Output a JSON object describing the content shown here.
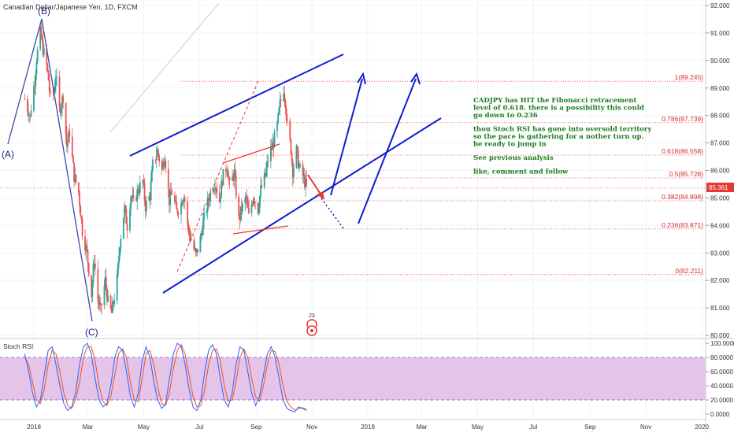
{
  "header": {
    "title": "Canadian Dollar/Japanese Yen, 1D, FXCM"
  },
  "chart_data": {
    "type": "candlestick",
    "symbol": "CADJPY",
    "timeframe": "1D",
    "price_axis": {
      "min": 80.0,
      "max": 92.0,
      "ticks": [
        "92.000",
        "91.000",
        "90.000",
        "89.000",
        "88.000",
        "87.000",
        "86.000",
        "85.000",
        "84.000",
        "83.000",
        "82.000",
        "81.000",
        "80.000"
      ]
    },
    "last_price": "85.361",
    "time_axis": [
      "2018",
      "Mar",
      "May",
      "Jul",
      "Sep",
      "Nov",
      "2019",
      "Mar",
      "May",
      "Jul",
      "Sep",
      "Nov",
      "2020"
    ],
    "close_path": [
      [
        "2017-12-22",
        88.6
      ],
      [
        "2017-12-26",
        88.2
      ],
      [
        "2017-12-28",
        87.9
      ],
      [
        "2017-12-29",
        88.3
      ],
      [
        "2018-01-02",
        89.3
      ],
      [
        "2018-01-04",
        90.1
      ],
      [
        "2018-01-08",
        91.0
      ],
      [
        "2018-01-10",
        90.6
      ],
      [
        "2018-01-11",
        90.4
      ],
      [
        "2018-01-15",
        89.8
      ],
      [
        "2018-01-17",
        89.3
      ],
      [
        "2018-01-19",
        88.6
      ],
      [
        "2018-01-23",
        88.9
      ],
      [
        "2018-01-25",
        89.5
      ],
      [
        "2018-01-29",
        88.2
      ],
      [
        "2018-02-02",
        88.7
      ],
      [
        "2018-02-06",
        86.9
      ],
      [
        "2018-02-09",
        87.4
      ],
      [
        "2018-02-14",
        85.8
      ],
      [
        "2018-02-19",
        85.2
      ],
      [
        "2018-02-23",
        83.8
      ],
      [
        "2018-02-28",
        83.0
      ],
      [
        "2018-03-05",
        81.5
      ],
      [
        "2018-03-08",
        82.8
      ],
      [
        "2018-03-12",
        81.3
      ],
      [
        "2018-03-15",
        80.9
      ],
      [
        "2018-03-20",
        82.0
      ],
      [
        "2018-03-23",
        81.2
      ],
      [
        "2018-03-27",
        80.8
      ],
      [
        "2018-04-02",
        82.0
      ],
      [
        "2018-04-05",
        83.4
      ],
      [
        "2018-04-10",
        84.6
      ],
      [
        "2018-04-13",
        84.0
      ],
      [
        "2018-04-17",
        85.1
      ],
      [
        "2018-04-20",
        84.8
      ],
      [
        "2018-04-25",
        85.3
      ],
      [
        "2018-04-30",
        85.6
      ],
      [
        "2018-05-03",
        84.7
      ],
      [
        "2018-05-08",
        85.1
      ],
      [
        "2018-05-11",
        86.2
      ],
      [
        "2018-05-16",
        86.7
      ],
      [
        "2018-05-21",
        86.0
      ],
      [
        "2018-05-24",
        86.6
      ],
      [
        "2018-05-29",
        84.9
      ],
      [
        "2018-06-01",
        85.2
      ],
      [
        "2018-06-06",
        84.5
      ],
      [
        "2018-06-11",
        84.8
      ],
      [
        "2018-06-14",
        85.2
      ],
      [
        "2018-06-19",
        83.8
      ],
      [
        "2018-06-22",
        83.5
      ],
      [
        "2018-06-27",
        82.9
      ],
      [
        "2018-07-02",
        83.5
      ],
      [
        "2018-07-05",
        84.1
      ],
      [
        "2018-07-10",
        84.8
      ],
      [
        "2018-07-13",
        85.2
      ],
      [
        "2018-07-18",
        85.6
      ],
      [
        "2018-07-23",
        84.9
      ],
      [
        "2018-07-26",
        85.7
      ],
      [
        "2018-07-31",
        86.2
      ],
      [
        "2018-08-03",
        85.4
      ],
      [
        "2018-08-08",
        85.9
      ],
      [
        "2018-08-13",
        84.2
      ],
      [
        "2018-08-16",
        84.6
      ],
      [
        "2018-08-21",
        85.0
      ],
      [
        "2018-08-24",
        84.3
      ],
      [
        "2018-08-29",
        85.1
      ],
      [
        "2018-09-03",
        84.6
      ],
      [
        "2018-09-06",
        85.3
      ],
      [
        "2018-09-11",
        85.8
      ],
      [
        "2018-09-14",
        86.4
      ],
      [
        "2018-09-19",
        86.9
      ],
      [
        "2018-09-24",
        87.6
      ],
      [
        "2018-09-27",
        88.4
      ],
      [
        "2018-10-01",
        89.0
      ],
      [
        "2018-10-03",
        88.5
      ],
      [
        "2018-10-05",
        87.6
      ],
      [
        "2018-10-09",
        86.8
      ],
      [
        "2018-10-11",
        86.0
      ],
      [
        "2018-10-15",
        86.7
      ],
      [
        "2018-10-18",
        86.1
      ],
      [
        "2018-10-23",
        85.7
      ],
      [
        "2018-10-26",
        85.36
      ]
    ],
    "fibonacci": [
      {
        "ratio": "1",
        "price": "89.245"
      },
      {
        "ratio": "0.786",
        "price": "87.739"
      },
      {
        "ratio": "0.618",
        "price": "86.558"
      },
      {
        "ratio": "0.5",
        "price": "85.728"
      },
      {
        "ratio": "0.382",
        "price": "84.898"
      },
      {
        "ratio": "0.236",
        "price": "83.871"
      },
      {
        "ratio": "0",
        "price": "82.211"
      }
    ],
    "wave_labels": [
      "(A)",
      "(B)",
      "(C)"
    ],
    "events": {
      "label": "23"
    },
    "annotation": [
      "CADJPY has HIT the Fibonacci retracement",
      "level of 0.618. there is a possibility this could",
      "go down to 0.236",
      "",
      "thou Stoch RSI has gone into oversold territory",
      "so the pace is gathering for a nother turn up.",
      "be ready to jump in",
      "",
      "See previous analysis",
      "",
      "like, comment and follow"
    ],
    "stoch_rsi": {
      "title": "Stoch RSI",
      "ticks": [
        "100.0000",
        "80.0000",
        "60.0000",
        "40.0000",
        "20.0000",
        "0.0000"
      ],
      "band": [
        20,
        80
      ],
      "k": [
        85,
        60,
        30,
        10,
        20,
        55,
        90,
        95,
        70,
        40,
        15,
        5,
        10,
        30,
        70,
        95,
        100,
        85,
        50,
        20,
        10,
        15,
        40,
        80,
        95,
        90,
        60,
        25,
        10,
        30,
        75,
        95,
        80,
        45,
        20,
        8,
        15,
        50,
        85,
        100,
        95,
        70,
        35,
        10,
        5,
        20,
        60,
        90,
        98,
        85,
        50,
        20,
        10,
        30,
        70,
        95,
        90,
        60,
        30,
        12,
        25,
        55,
        85,
        95,
        80,
        50,
        20,
        8,
        5,
        3,
        10,
        8,
        5
      ],
      "d": [
        80,
        70,
        45,
        20,
        15,
        35,
        70,
        90,
        85,
        60,
        30,
        12,
        8,
        20,
        45,
        80,
        95,
        95,
        75,
        40,
        18,
        12,
        25,
        55,
        85,
        92,
        80,
        45,
        20,
        18,
        50,
        85,
        90,
        70,
        38,
        15,
        12,
        30,
        65,
        90,
        98,
        85,
        55,
        25,
        10,
        12,
        35,
        70,
        90,
        92,
        75,
        40,
        18,
        20,
        45,
        80,
        92,
        80,
        50,
        25,
        18,
        40,
        70,
        90,
        88,
        70,
        40,
        18,
        10,
        6,
        8,
        9,
        7
      ],
      "k_color": "#2962ff",
      "d_color": "#f4511e"
    },
    "colors": {
      "up": "#26a69a",
      "down": "#ef5350",
      "channel": "#0d1ecf",
      "fib_line": "#e53935",
      "stoch_band": "#e1bee7",
      "note_text": "#1b7d1b",
      "price_tag": "#e53935"
    }
  }
}
